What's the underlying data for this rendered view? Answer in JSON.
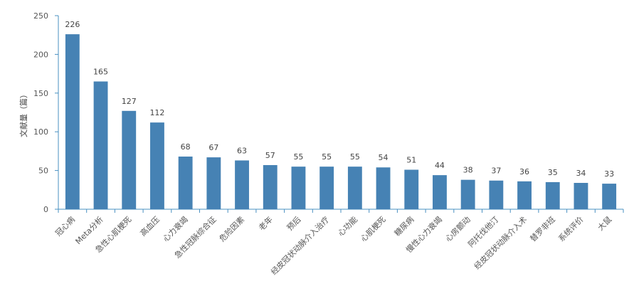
{
  "chart_data": {
    "type": "bar",
    "title": "",
    "xlabel": "",
    "ylabel": "文献量（篇）",
    "ylim": [
      0,
      250
    ],
    "yticks": [
      0,
      50,
      100,
      150,
      200,
      250
    ],
    "grid": false,
    "legend": "none",
    "bar_color": "#4682b4",
    "categories": [
      "冠心病",
      "Meta分析",
      "急性心肌梗死",
      "高血压",
      "心力衰竭",
      "急性冠脉综合征",
      "危险因素",
      "老年",
      "预后",
      "经皮冠状动脉介入治疗",
      "心功能",
      "心肌梗死",
      "糖尿病",
      "慢性心力衰竭",
      "心房颤动",
      "阿托伐他汀",
      "经皮冠状动脉介入术",
      "替罗非班",
      "系统评价",
      "大鼠"
    ],
    "values": [
      226,
      165,
      127,
      112,
      68,
      67,
      63,
      57,
      55,
      55,
      55,
      54,
      51,
      44,
      38,
      37,
      36,
      35,
      34,
      33
    ]
  }
}
